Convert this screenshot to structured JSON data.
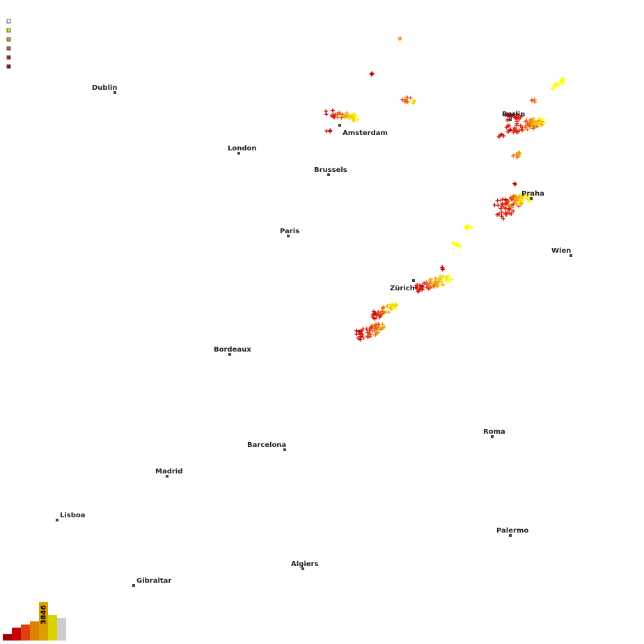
{
  "legend": {
    "swatches": [
      {
        "name": "white-swatch",
        "color": "#ffffff"
      },
      {
        "name": "yellow-swatch",
        "color": "#e8e800"
      },
      {
        "name": "orange-swatch",
        "color": "#e0a000"
      },
      {
        "name": "dark-orange-swatch",
        "color": "#e05010"
      },
      {
        "name": "red-swatch",
        "color": "#d01010"
      },
      {
        "name": "dark-red-swatch",
        "color": "#a00000"
      }
    ]
  },
  "cities": [
    {
      "name": "Dublin"
    },
    {
      "name": "London"
    },
    {
      "name": "Amsterdam"
    },
    {
      "name": "Brussels"
    },
    {
      "name": "Berlin"
    },
    {
      "name": "Praha"
    },
    {
      "name": "Wien"
    },
    {
      "name": "Paris"
    },
    {
      "name": "Zürich"
    },
    {
      "name": "Bordeaux"
    },
    {
      "name": "Roma"
    },
    {
      "name": "Barcelona"
    },
    {
      "name": "Madrid"
    },
    {
      "name": "Lisboa"
    },
    {
      "name": "Palermo"
    },
    {
      "name": "Algiers"
    },
    {
      "name": "Gibraltar"
    }
  ],
  "histogram": {
    "count_label": "3846",
    "bars": [
      {
        "color": "#a00000",
        "value": 1
      },
      {
        "color": "#cc0000",
        "value": 2
      },
      {
        "color": "#e04010",
        "value": 2.5
      },
      {
        "color": "#e08000",
        "value": 3
      },
      {
        "color": "#d8a000",
        "value": 6
      },
      {
        "color": "#d8d000",
        "value": 4
      },
      {
        "color": "#cccccc",
        "value": 3.5
      }
    ]
  },
  "strike_colors": [
    "#ffff00",
    "#f0d000",
    "#f0a000",
    "#e86010",
    "#e02010",
    "#c00000"
  ]
}
